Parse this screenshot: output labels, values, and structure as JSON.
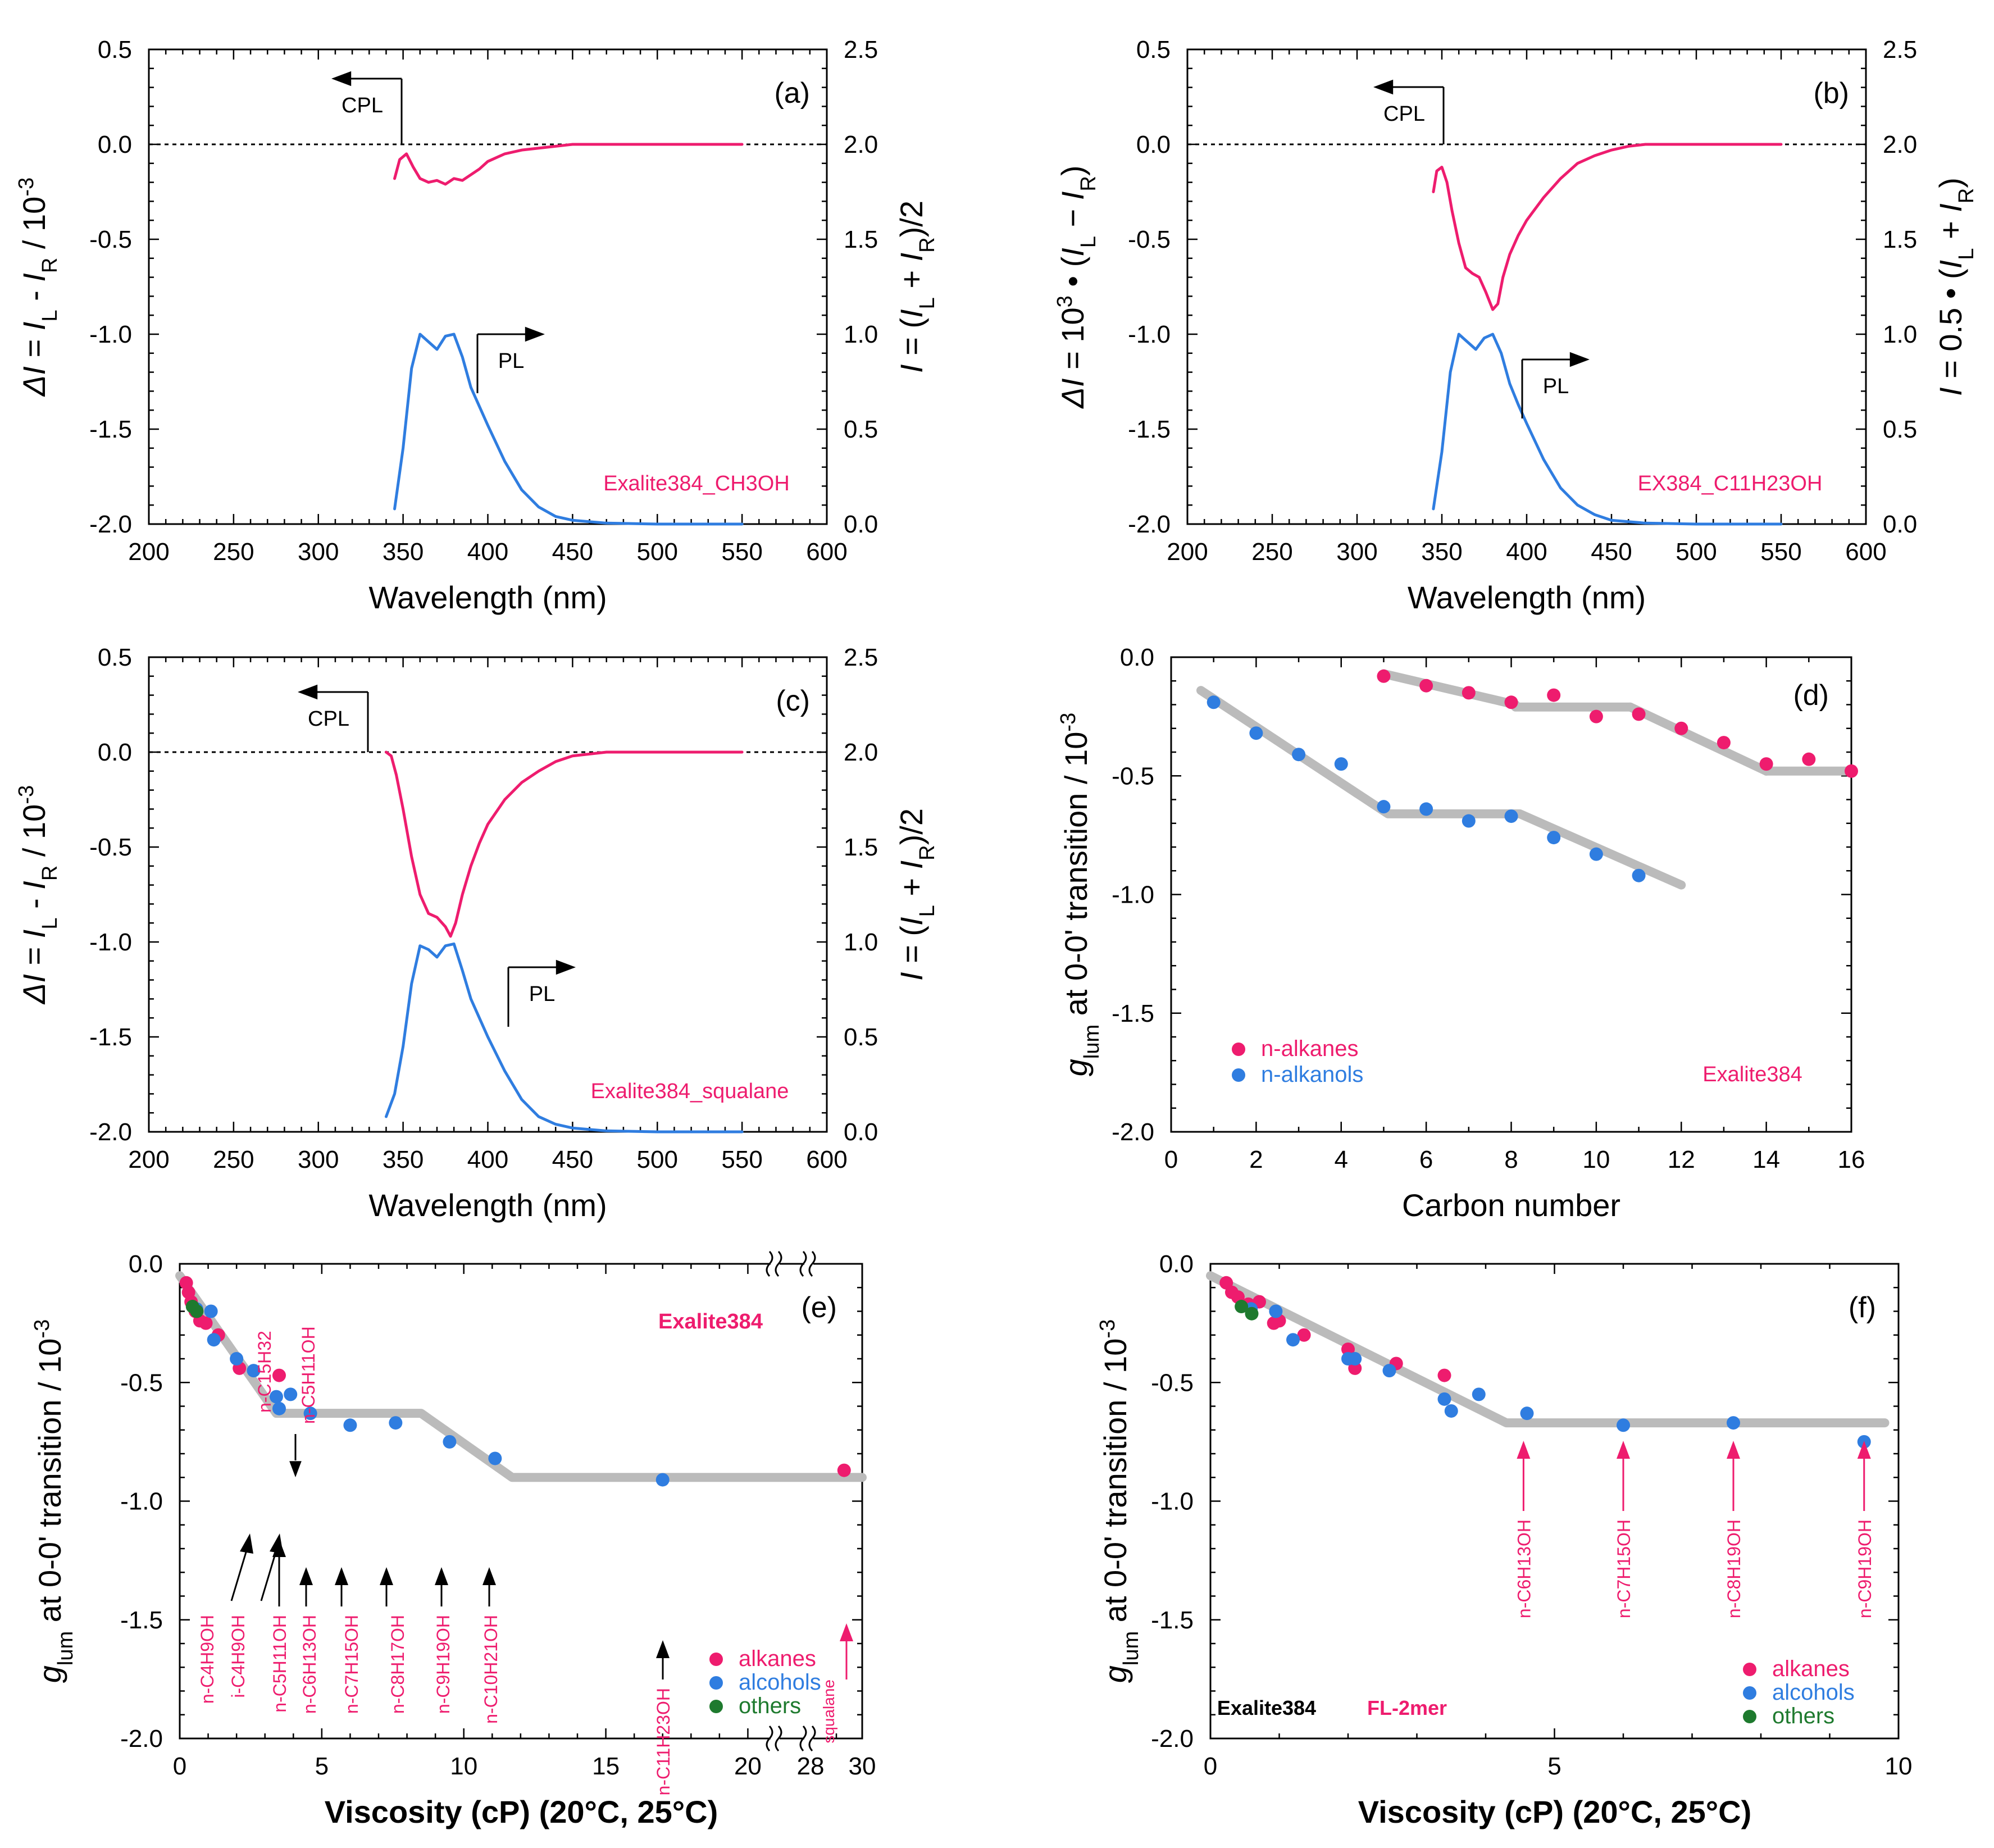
{
  "colors": {
    "pink": "#ee1c6e",
    "blue": "#2f7de0",
    "green": "#1e7a2e",
    "gray": "#bbbbbb",
    "axis": "#000000"
  },
  "chart_data": [
    {
      "id": "a",
      "type": "line",
      "panel_label": "(a)",
      "xlabel": "Wavelength (nm)",
      "ylabel_left": "ΔI = I_L − I_R / 10^-3",
      "ylabel_right": "I = (I_L + I_R)/2",
      "xlim": [
        200,
        600
      ],
      "ylim_left": [
        -2.0,
        0.5
      ],
      "ylim_right": [
        0,
        2.5
      ],
      "xticks": [
        "200",
        "250",
        "300",
        "350",
        "400",
        "450",
        "500",
        "550",
        "600"
      ],
      "yticks_left": [
        "0.5",
        "0.0",
        "-0.5",
        "-1.0",
        "-1.5",
        "-2.0"
      ],
      "yticks_right": [
        "2.5",
        "2.0",
        "1.5",
        "1.0",
        "0.5",
        "0.0"
      ],
      "sample_label": "Exalite384_CH3OH",
      "cpl_label": "CPL",
      "pl_label": "PL",
      "series": [
        {
          "name": "CPL",
          "axis": "left",
          "x": [
            345,
            348,
            352,
            356,
            360,
            365,
            370,
            375,
            380,
            385,
            390,
            395,
            400,
            410,
            420,
            430,
            440,
            450,
            470,
            500,
            550
          ],
          "y": [
            -0.18,
            -0.08,
            -0.05,
            -0.12,
            -0.18,
            -0.2,
            -0.19,
            -0.21,
            -0.18,
            -0.19,
            -0.16,
            -0.13,
            -0.09,
            -0.05,
            -0.03,
            -0.02,
            -0.01,
            0,
            0,
            0,
            0
          ]
        },
        {
          "name": "PL",
          "axis": "right",
          "x": [
            345,
            350,
            355,
            360,
            365,
            370,
            375,
            380,
            385,
            390,
            395,
            400,
            410,
            420,
            430,
            440,
            450,
            470,
            500,
            550
          ],
          "y": [
            0.08,
            0.4,
            0.82,
            1.0,
            0.96,
            0.92,
            0.99,
            1.0,
            0.88,
            0.72,
            0.62,
            0.52,
            0.33,
            0.18,
            0.09,
            0.04,
            0.02,
            0.005,
            0,
            0
          ]
        }
      ]
    },
    {
      "id": "b",
      "type": "line",
      "panel_label": "(b)",
      "xlabel": "Wavelength (nm)",
      "ylabel_left": "ΔI = 10^3 • (I_L − I_R)",
      "ylabel_right": "I = 0.5 • (I_L + I_R)",
      "xlim": [
        200,
        600
      ],
      "ylim_left": [
        -2.0,
        0.5
      ],
      "ylim_right": [
        0,
        2.5
      ],
      "xticks": [
        "200",
        "250",
        "300",
        "350",
        "400",
        "450",
        "500",
        "550",
        "600"
      ],
      "yticks_left": [
        "0.5",
        "0.0",
        "-0.5",
        "-1.0",
        "-1.5",
        "-2.0"
      ],
      "yticks_right": [
        "2.5",
        "2.0",
        "1.5",
        "1.0",
        "0.5",
        "0.0"
      ],
      "sample_label": "EX384_C11H23OH",
      "cpl_label": "CPL",
      "pl_label": "PL",
      "series": [
        {
          "name": "CPL",
          "axis": "left",
          "x": [
            345,
            347,
            350,
            353,
            356,
            360,
            364,
            368,
            372,
            376,
            380,
            383,
            386,
            390,
            395,
            400,
            410,
            420,
            430,
            440,
            450,
            460,
            470,
            500,
            550
          ],
          "y": [
            -0.25,
            -0.14,
            -0.12,
            -0.2,
            -0.35,
            -0.52,
            -0.65,
            -0.68,
            -0.7,
            -0.78,
            -0.87,
            -0.84,
            -0.7,
            -0.58,
            -0.48,
            -0.4,
            -0.28,
            -0.18,
            -0.1,
            -0.06,
            -0.03,
            -0.01,
            0,
            0,
            0
          ]
        },
        {
          "name": "PL",
          "axis": "right",
          "x": [
            345,
            350,
            355,
            360,
            365,
            370,
            375,
            380,
            385,
            390,
            395,
            400,
            410,
            420,
            430,
            440,
            450,
            470,
            500,
            550
          ],
          "y": [
            0.08,
            0.38,
            0.8,
            1.0,
            0.96,
            0.92,
            0.98,
            1.0,
            0.9,
            0.74,
            0.63,
            0.53,
            0.34,
            0.19,
            0.1,
            0.05,
            0.02,
            0.005,
            0,
            0
          ]
        }
      ]
    },
    {
      "id": "c",
      "type": "line",
      "panel_label": "(c)",
      "xlabel": "Wavelength (nm)",
      "ylabel_left": "ΔI = I_L − I_R / 10^-3",
      "ylabel_right": "I = (I_L + I_R)/2",
      "xlim": [
        200,
        600
      ],
      "ylim_left": [
        -2.0,
        0.5
      ],
      "ylim_right": [
        0,
        2.5
      ],
      "xticks": [
        "200",
        "250",
        "300",
        "350",
        "400",
        "450",
        "500",
        "550",
        "600"
      ],
      "yticks_left": [
        "0.5",
        "0.0",
        "-0.5",
        "-1.0",
        "-1.5",
        "-2.0"
      ],
      "yticks_right": [
        "2.5",
        "2.0",
        "1.5",
        "1.0",
        "0.5",
        "0.0"
      ],
      "sample_label": "Exalite384_squalane",
      "cpl_label": "CPL",
      "pl_label": "PL",
      "series": [
        {
          "name": "CPL",
          "axis": "left",
          "x": [
            340,
            343,
            346,
            350,
            355,
            360,
            365,
            370,
            375,
            378,
            381,
            385,
            390,
            395,
            400,
            410,
            420,
            430,
            440,
            450,
            470,
            500,
            550
          ],
          "y": [
            0,
            -0.02,
            -0.12,
            -0.3,
            -0.55,
            -0.75,
            -0.85,
            -0.87,
            -0.92,
            -0.97,
            -0.9,
            -0.75,
            -0.6,
            -0.48,
            -0.38,
            -0.25,
            -0.16,
            -0.1,
            -0.05,
            -0.02,
            0,
            0,
            0
          ]
        },
        {
          "name": "PL",
          "axis": "right",
          "x": [
            340,
            345,
            350,
            355,
            360,
            365,
            370,
            375,
            380,
            385,
            390,
            395,
            400,
            410,
            420,
            430,
            440,
            450,
            470,
            500,
            550
          ],
          "y": [
            0.08,
            0.2,
            0.45,
            0.78,
            0.98,
            0.96,
            0.92,
            0.98,
            0.99,
            0.85,
            0.7,
            0.6,
            0.5,
            0.32,
            0.17,
            0.08,
            0.04,
            0.02,
            0.005,
            0,
            0
          ]
        }
      ]
    },
    {
      "id": "d",
      "type": "scatter",
      "panel_label": "(d)",
      "xlabel": "Carbon number",
      "ylabel": "g_lum at 0-0' transition / 10^-3",
      "xlim": [
        0,
        16
      ],
      "ylim": [
        -2.0,
        0.0
      ],
      "xticks": [
        "0",
        "2",
        "4",
        "6",
        "8",
        "10",
        "12",
        "14",
        "16"
      ],
      "yticks": [
        "0.0",
        "-0.5",
        "-1.0",
        "-1.5",
        "-2.0"
      ],
      "annotation": "Exalite384",
      "series": [
        {
          "name": "n-alkanes",
          "color": "pink",
          "x": [
            5,
            6,
            7,
            8,
            9,
            10,
            11,
            12,
            13,
            14,
            15,
            16
          ],
          "y": [
            -0.08,
            -0.12,
            -0.15,
            -0.19,
            -0.16,
            -0.25,
            -0.24,
            -0.3,
            -0.36,
            -0.45,
            -0.43,
            -0.48
          ]
        },
        {
          "name": "n-alkanols",
          "color": "blue",
          "x": [
            1,
            2,
            3,
            4,
            5,
            6,
            7,
            8,
            9,
            10,
            11
          ],
          "y": [
            -0.19,
            -0.32,
            -0.41,
            -0.45,
            -0.63,
            -0.64,
            -0.69,
            -0.67,
            -0.76,
            -0.83,
            -0.92
          ]
        }
      ],
      "trend_lines": [
        {
          "x": [
            0.7,
            5.1,
            8.2,
            12
          ],
          "y": [
            -0.14,
            -0.66,
            -0.66,
            -0.96
          ]
        },
        {
          "x": [
            5,
            8.1
          ],
          "y": [
            -0.07,
            -0.2
          ]
        },
        {
          "x": [
            8.1,
            10.8
          ],
          "y": [
            -0.21,
            -0.21
          ]
        },
        {
          "x": [
            10.8,
            14
          ],
          "y": [
            -0.21,
            -0.48
          ]
        },
        {
          "x": [
            14,
            16
          ],
          "y": [
            -0.48,
            -0.48
          ]
        }
      ]
    },
    {
      "id": "e",
      "type": "scatter",
      "panel_label": "(e)",
      "xlabel": "Viscosity (cP) (20°C, 25°C)",
      "ylabel": "g_lum at 0-0' transition / 10^-3",
      "xlim": [
        0,
        30
      ],
      "ylim": [
        -2.0,
        0.0
      ],
      "xticks": [
        "0",
        "5",
        "10",
        "15",
        "20",
        "28",
        "30"
      ],
      "yticks": [
        "0.0",
        "-0.5",
        "-1.0",
        "-1.5",
        "-2.0"
      ],
      "annotation": "Exalite384",
      "labels": [
        "n-C4H9OH",
        "i-C4H9OH",
        "n-C5H11OH",
        "n-C6H13OH",
        "n-C7H15OH",
        "n-C8H17OH",
        "n-C9H19OH",
        "n-C10H21OH",
        "n-C11H23OH",
        "squalane",
        "n-C15H32",
        "n-C5H11OH"
      ],
      "series": [
        {
          "name": "alkanes",
          "color": "pink",
          "x": [
            0.23,
            0.31,
            0.4,
            0.55,
            0.71,
            0.92,
            1.36,
            2.1,
            3.5,
            29.3
          ],
          "y": [
            -0.08,
            -0.12,
            -0.16,
            -0.2,
            -0.24,
            -0.25,
            -0.3,
            -0.44,
            -0.47,
            -0.87
          ]
        },
        {
          "name": "alcohols",
          "color": "blue",
          "x": [
            0.59,
            1.2,
            1.1,
            2.0,
            2.6,
            3.4,
            3.5,
            3.9,
            4.6,
            6.0,
            7.6,
            9.5,
            11.1,
            17
          ],
          "y": [
            -0.19,
            -0.32,
            -0.2,
            -0.4,
            -0.45,
            -0.56,
            -0.61,
            -0.55,
            -0.63,
            -0.68,
            -0.67,
            -0.75,
            -0.82,
            -0.91
          ]
        },
        {
          "name": "others",
          "color": "green",
          "x": [
            0.45,
            0.6
          ],
          "y": [
            -0.18,
            -0.2
          ]
        }
      ],
      "trend_line": {
        "x": [
          0,
          3.4,
          8.5,
          11.7,
          21.5,
          30
        ],
        "y": [
          -0.05,
          -0.63,
          -0.63,
          -0.9,
          -0.9,
          -0.9
        ]
      }
    },
    {
      "id": "f",
      "type": "scatter",
      "panel_label": "(f)",
      "xlabel": "Viscosity (cP) (20°C, 25°C)",
      "ylabel": "g_lum at 0-0' transition / 10^-3",
      "xlim": [
        0,
        10
      ],
      "ylim": [
        -2.0,
        0.0
      ],
      "xticks": [
        "0",
        "5",
        "10"
      ],
      "yticks": [
        "0.0",
        "-0.5",
        "-1.0",
        "-1.5",
        "-2.0"
      ],
      "annotation": "Exalite384",
      "annotation2": "FL-2mer",
      "labels": [
        "n-C6H13OH",
        "n-C7H15OH",
        "n-C8H19OH",
        "n-C9H19OH"
      ],
      "series": [
        {
          "name": "alkanes",
          "color": "pink",
          "x": [
            0.23,
            0.31,
            0.4,
            0.55,
            0.71,
            0.92,
            1.0,
            1.36,
            2.0,
            2.1,
            2.7,
            3.4
          ],
          "y": [
            -0.08,
            -0.12,
            -0.14,
            -0.17,
            -0.16,
            -0.25,
            -0.24,
            -0.3,
            -0.36,
            -0.44,
            -0.42,
            -0.47
          ]
        },
        {
          "name": "alcohols",
          "color": "blue",
          "x": [
            0.59,
            0.95,
            1.2,
            2.0,
            2.1,
            2.6,
            3.4,
            3.5,
            3.9,
            4.6,
            6.0,
            7.6,
            9.5
          ],
          "y": [
            -0.19,
            -0.2,
            -0.32,
            -0.4,
            -0.4,
            -0.45,
            -0.57,
            -0.62,
            -0.55,
            -0.63,
            -0.68,
            -0.67,
            -0.75
          ]
        },
        {
          "name": "others",
          "color": "green",
          "x": [
            0.45,
            0.6
          ],
          "y": [
            -0.18,
            -0.21
          ]
        }
      ],
      "trend_line": {
        "x": [
          0,
          4.3,
          9.8
        ],
        "y": [
          -0.05,
          -0.67,
          -0.67
        ]
      }
    }
  ]
}
